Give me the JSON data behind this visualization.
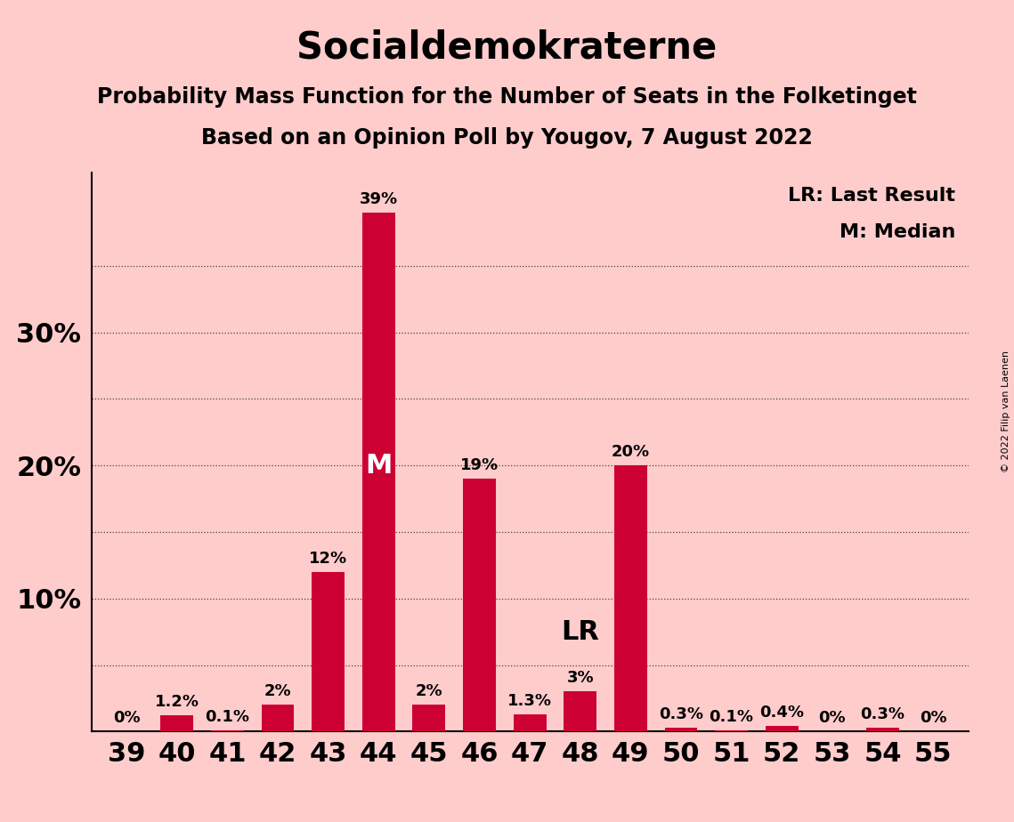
{
  "title": "Socialdemokraterne",
  "subtitle1": "Probability Mass Function for the Number of Seats in the Folketinget",
  "subtitle2": "Based on an Opinion Poll by Yougov, 7 August 2022",
  "copyright": "© 2022 Filip van Laenen",
  "legend_line1": "LR: Last Result",
  "legend_line2": "M: Median",
  "seats": [
    39,
    40,
    41,
    42,
    43,
    44,
    45,
    46,
    47,
    48,
    49,
    50,
    51,
    52,
    53,
    54,
    55
  ],
  "probabilities": [
    0.0,
    1.2,
    0.1,
    2.0,
    12.0,
    39.0,
    2.0,
    19.0,
    1.3,
    3.0,
    20.0,
    0.3,
    0.1,
    0.4,
    0.0,
    0.3,
    0.0
  ],
  "bar_color": "#CC0033",
  "background_color": "#FFCCCC",
  "median_seat": 44,
  "last_result_seat": 48,
  "ymax": 42,
  "bar_label_fontsize": 13,
  "title_fontsize": 30,
  "subtitle_fontsize": 17,
  "tick_fontsize": 22,
  "legend_fontsize": 16,
  "m_label_fontsize": 22,
  "lr_label_fontsize": 22,
  "copyright_fontsize": 8
}
